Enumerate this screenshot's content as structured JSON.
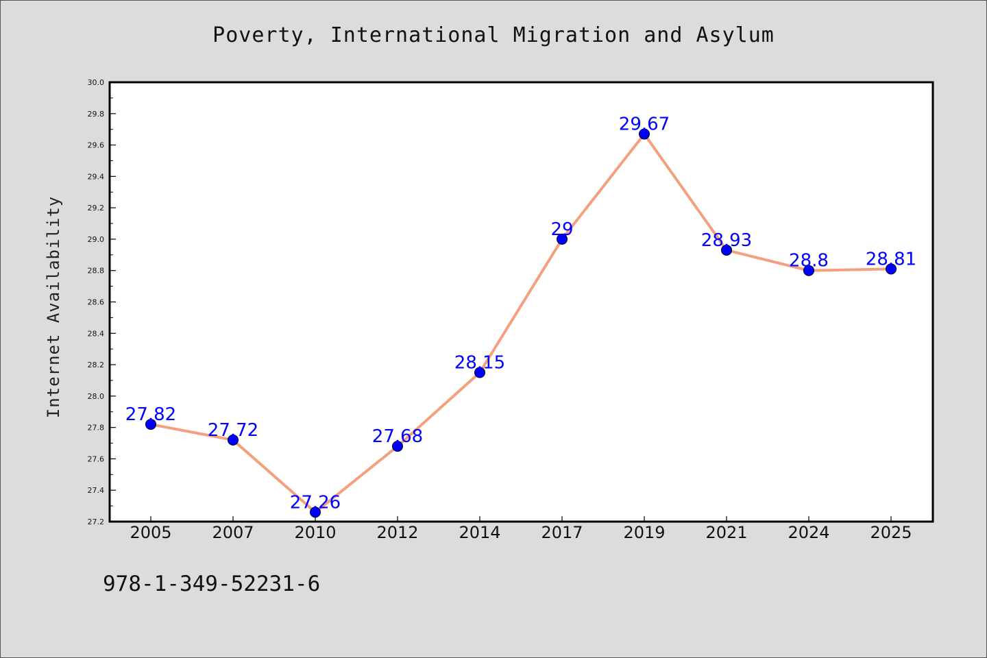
{
  "chart_data": {
    "type": "line",
    "title": "Poverty,  International Migration and Asylum",
    "ylabel": "Internet Availability",
    "xlabel": "",
    "categories": [
      "2005",
      "2007",
      "2010",
      "2012",
      "2014",
      "2017",
      "2019",
      "2021",
      "2024",
      "2025"
    ],
    "values": [
      27.82,
      27.72,
      27.26,
      27.68,
      28.15,
      29,
      29.67,
      28.93,
      28.8,
      28.81
    ],
    "data_labels": [
      "27.82",
      "27.72",
      "27.26",
      "27.68",
      "28.15",
      "29",
      "29.67",
      "28.93",
      "28.8",
      "28.81"
    ],
    "ylim": [
      27.2,
      30.0
    ],
    "yticks": [
      "27.2",
      "27.4",
      "27.6",
      "27.8",
      "28.0",
      "28.2",
      "28.4",
      "28.6",
      "28.8",
      "29.0",
      "29.2",
      "29.4",
      "29.6",
      "29.8",
      "30.0"
    ],
    "grid": false,
    "legend": "none",
    "colors": {
      "line": "#f4a07e",
      "marker": "#0000ff",
      "data_label": "#0000ff"
    }
  },
  "footer": {
    "code": "978-1-349-52231-6"
  }
}
